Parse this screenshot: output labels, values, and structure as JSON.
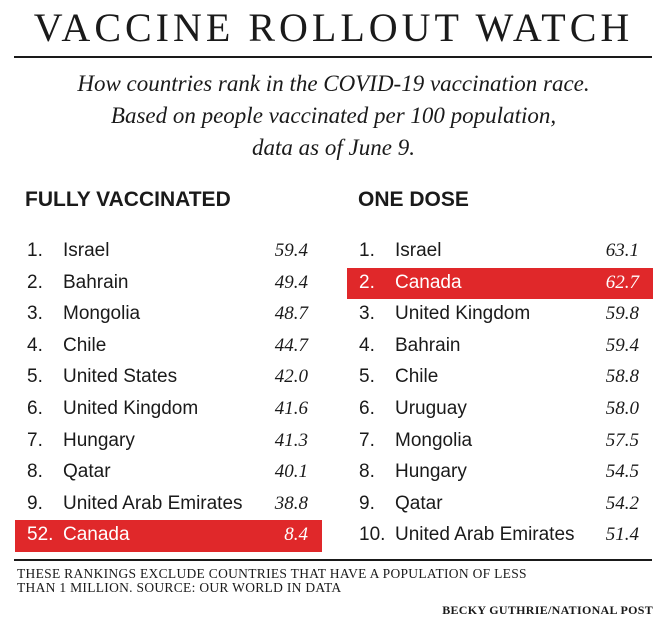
{
  "header": {
    "title": "VACCINE ROLLOUT WATCH",
    "subtitle_lines": [
      "How countries rank in the COVID-19 vaccination race.",
      "Based on people vaccinated per 100 population,",
      "data as of June 9."
    ]
  },
  "fully_vaccinated": {
    "heading": "FULLY VACCINATED",
    "rows": [
      {
        "rank": "1.",
        "country": "Israel",
        "value": "59.4"
      },
      {
        "rank": "2.",
        "country": "Bahrain",
        "value": "49.4"
      },
      {
        "rank": "3.",
        "country": "Mongolia",
        "value": "48.7"
      },
      {
        "rank": "4.",
        "country": "Chile",
        "value": "44.7"
      },
      {
        "rank": "5.",
        "country": "United States",
        "value": "42.0"
      },
      {
        "rank": "6.",
        "country": "United Kingdom",
        "value": "41.6"
      },
      {
        "rank": "7.",
        "country": "Hungary",
        "value": "41.3"
      },
      {
        "rank": "8.",
        "country": "Qatar",
        "value": "40.1"
      },
      {
        "rank": "9.",
        "country": "United Arab Emirates",
        "value": "38.8"
      },
      {
        "rank": "52.",
        "country": "Canada",
        "value": "8.4",
        "highlight": true
      }
    ]
  },
  "one_dose": {
    "heading": "ONE DOSE",
    "rows": [
      {
        "rank": "1.",
        "country": "Israel",
        "value": "63.1"
      },
      {
        "rank": "2.",
        "country": "Canada",
        "value": "62.7",
        "highlight": true
      },
      {
        "rank": "3.",
        "country": "United Kingdom",
        "value": "59.8"
      },
      {
        "rank": "4.",
        "country": "Bahrain",
        "value": "59.4"
      },
      {
        "rank": "5.",
        "country": "Chile",
        "value": "58.8"
      },
      {
        "rank": "6.",
        "country": "Uruguay",
        "value": "58.0"
      },
      {
        "rank": "7.",
        "country": "Mongolia",
        "value": "57.5"
      },
      {
        "rank": "8.",
        "country": "Hungary",
        "value": "54.5"
      },
      {
        "rank": "9.",
        "country": "Qatar",
        "value": "54.2"
      },
      {
        "rank": "10.",
        "country": "United Arab Emirates",
        "value": "51.4"
      }
    ]
  },
  "footer": {
    "note_lines": [
      "THESE RANKINGS EXCLUDE COUNTRIES THAT HAVE A POPULATION OF LESS",
      "THAN 1 MILLION. SOURCE: OUR WORLD IN DATA"
    ],
    "credit": "BECKY GUTHRIE/NATIONAL POST"
  },
  "colors": {
    "highlight": "#e0282a",
    "text": "#1a1a1a",
    "background": "#ffffff"
  }
}
